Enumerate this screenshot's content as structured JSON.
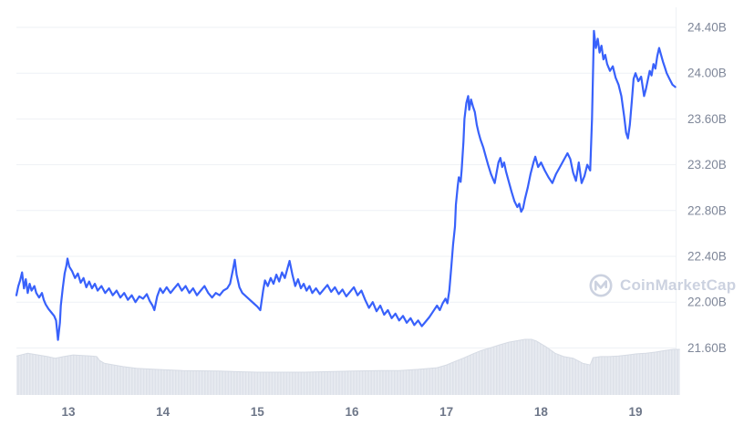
{
  "watermark": {
    "text": "CoinMarketCap"
  },
  "colors": {
    "line": "#3861fb",
    "grid": "#eef1f5",
    "axis_text": "#7f8799",
    "x_axis_text": "#6e7789",
    "nav_base": "#e8ebf1",
    "nav_stripe": "#dde1e9",
    "nav_edge": "#d6dbe4",
    "watermark": "#ccd2e0",
    "background": "#ffffff"
  },
  "chart_data": {
    "type": "line",
    "xlabel": "",
    "ylabel": "",
    "unit": "B",
    "grid": "horizontal",
    "legend": "none",
    "y_axis": {
      "position": "right",
      "tick_labels": [
        "24.40B",
        "24.00B",
        "23.60B",
        "23.20B",
        "22.80B",
        "22.40B",
        "22.00B",
        "21.60B"
      ],
      "tick_values": [
        24.4,
        24.0,
        23.6,
        23.2,
        22.8,
        22.4,
        22.0,
        21.6
      ]
    },
    "x_axis": {
      "position": "bottom",
      "tick_labels": [
        "13",
        "14",
        "15",
        "16",
        "17",
        "18",
        "19"
      ],
      "tick_values": [
        13,
        14,
        15,
        16,
        17,
        18,
        19
      ]
    },
    "x_range": [
      12.45,
      19.42
    ],
    "ylim": [
      21.6,
      24.4
    ],
    "series": [
      {
        "name": "market_cap_billions_usd",
        "color": "#3861fb",
        "points": [
          [
            12.45,
            22.06
          ],
          [
            12.47,
            22.14
          ],
          [
            12.49,
            22.19
          ],
          [
            12.51,
            22.26
          ],
          [
            12.53,
            22.12
          ],
          [
            12.55,
            22.2
          ],
          [
            12.57,
            22.08
          ],
          [
            12.59,
            22.16
          ],
          [
            12.61,
            22.1
          ],
          [
            12.64,
            22.14
          ],
          [
            12.66,
            22.08
          ],
          [
            12.69,
            22.04
          ],
          [
            12.72,
            22.08
          ],
          [
            12.74,
            22.02
          ],
          [
            12.76,
            21.98
          ],
          [
            12.79,
            21.94
          ],
          [
            12.82,
            21.91
          ],
          [
            12.85,
            21.88
          ],
          [
            12.87,
            21.84
          ],
          [
            12.89,
            21.67
          ],
          [
            12.91,
            21.82
          ],
          [
            12.92,
            21.97
          ],
          [
            12.94,
            22.12
          ],
          [
            12.96,
            22.25
          ],
          [
            12.98,
            22.32
          ],
          [
            12.99,
            22.38
          ],
          [
            13.01,
            22.31
          ],
          [
            13.04,
            22.27
          ],
          [
            13.07,
            22.21
          ],
          [
            13.1,
            22.25
          ],
          [
            13.13,
            22.17
          ],
          [
            13.16,
            22.21
          ],
          [
            13.19,
            22.13
          ],
          [
            13.22,
            22.18
          ],
          [
            13.25,
            22.12
          ],
          [
            13.28,
            22.16
          ],
          [
            13.31,
            22.1
          ],
          [
            13.35,
            22.14
          ],
          [
            13.39,
            22.08
          ],
          [
            13.43,
            22.12
          ],
          [
            13.47,
            22.06
          ],
          [
            13.51,
            22.1
          ],
          [
            13.55,
            22.04
          ],
          [
            13.59,
            22.08
          ],
          [
            13.63,
            22.02
          ],
          [
            13.67,
            22.06
          ],
          [
            13.71,
            22.0
          ],
          [
            13.75,
            22.05
          ],
          [
            13.79,
            22.03
          ],
          [
            13.83,
            22.07
          ],
          [
            13.86,
            22.01
          ],
          [
            13.89,
            21.97
          ],
          [
            13.91,
            21.93
          ],
          [
            13.94,
            22.05
          ],
          [
            13.97,
            22.12
          ],
          [
            14.0,
            22.08
          ],
          [
            14.04,
            22.13
          ],
          [
            14.08,
            22.08
          ],
          [
            14.12,
            22.12
          ],
          [
            14.16,
            22.16
          ],
          [
            14.2,
            22.1
          ],
          [
            14.24,
            22.14
          ],
          [
            14.28,
            22.08
          ],
          [
            14.32,
            22.12
          ],
          [
            14.36,
            22.06
          ],
          [
            14.4,
            22.1
          ],
          [
            14.44,
            22.14
          ],
          [
            14.48,
            22.08
          ],
          [
            14.52,
            22.04
          ],
          [
            14.56,
            22.08
          ],
          [
            14.6,
            22.06
          ],
          [
            14.64,
            22.1
          ],
          [
            14.68,
            22.12
          ],
          [
            14.71,
            22.16
          ],
          [
            14.74,
            22.28
          ],
          [
            14.76,
            22.37
          ],
          [
            14.78,
            22.24
          ],
          [
            14.81,
            22.13
          ],
          [
            14.84,
            22.08
          ],
          [
            14.88,
            22.05
          ],
          [
            14.92,
            22.02
          ],
          [
            14.96,
            21.99
          ],
          [
            15.0,
            21.96
          ],
          [
            15.03,
            21.93
          ],
          [
            15.06,
            22.1
          ],
          [
            15.08,
            22.19
          ],
          [
            15.11,
            22.14
          ],
          [
            15.14,
            22.21
          ],
          [
            15.17,
            22.16
          ],
          [
            15.2,
            22.24
          ],
          [
            15.23,
            22.18
          ],
          [
            15.26,
            22.26
          ],
          [
            15.29,
            22.21
          ],
          [
            15.32,
            22.3
          ],
          [
            15.34,
            22.36
          ],
          [
            15.37,
            22.24
          ],
          [
            15.4,
            22.14
          ],
          [
            15.43,
            22.2
          ],
          [
            15.46,
            22.12
          ],
          [
            15.49,
            22.16
          ],
          [
            15.52,
            22.1
          ],
          [
            15.55,
            22.14
          ],
          [
            15.58,
            22.08
          ],
          [
            15.62,
            22.12
          ],
          [
            15.66,
            22.07
          ],
          [
            15.7,
            22.11
          ],
          [
            15.74,
            22.15
          ],
          [
            15.78,
            22.09
          ],
          [
            15.82,
            22.13
          ],
          [
            15.86,
            22.07
          ],
          [
            15.9,
            22.11
          ],
          [
            15.94,
            22.05
          ],
          [
            15.98,
            22.09
          ],
          [
            16.02,
            22.13
          ],
          [
            16.06,
            22.06
          ],
          [
            16.1,
            22.1
          ],
          [
            16.14,
            22.02
          ],
          [
            16.18,
            21.95
          ],
          [
            16.22,
            22.0
          ],
          [
            16.26,
            21.92
          ],
          [
            16.3,
            21.97
          ],
          [
            16.34,
            21.89
          ],
          [
            16.38,
            21.93
          ],
          [
            16.42,
            21.86
          ],
          [
            16.46,
            21.9
          ],
          [
            16.5,
            21.84
          ],
          [
            16.54,
            21.88
          ],
          [
            16.58,
            21.82
          ],
          [
            16.62,
            21.86
          ],
          [
            16.66,
            21.8
          ],
          [
            16.7,
            21.84
          ],
          [
            16.74,
            21.79
          ],
          [
            16.78,
            21.83
          ],
          [
            16.82,
            21.87
          ],
          [
            16.86,
            21.92
          ],
          [
            16.9,
            21.97
          ],
          [
            16.93,
            21.93
          ],
          [
            16.96,
            21.99
          ],
          [
            16.99,
            22.03
          ],
          [
            17.01,
            21.99
          ],
          [
            17.03,
            22.1
          ],
          [
            17.05,
            22.3
          ],
          [
            17.07,
            22.5
          ],
          [
            17.09,
            22.66
          ],
          [
            17.1,
            22.85
          ],
          [
            17.12,
            23.02
          ],
          [
            17.13,
            23.09
          ],
          [
            17.15,
            23.05
          ],
          [
            17.16,
            23.15
          ],
          [
            17.18,
            23.4
          ],
          [
            17.19,
            23.6
          ],
          [
            17.21,
            23.74
          ],
          [
            17.23,
            23.8
          ],
          [
            17.24,
            23.68
          ],
          [
            17.26,
            23.77
          ],
          [
            17.28,
            23.71
          ],
          [
            17.3,
            23.66
          ],
          [
            17.32,
            23.55
          ],
          [
            17.34,
            23.48
          ],
          [
            17.36,
            23.42
          ],
          [
            17.39,
            23.35
          ],
          [
            17.42,
            23.26
          ],
          [
            17.44,
            23.2
          ],
          [
            17.47,
            23.12
          ],
          [
            17.49,
            23.08
          ],
          [
            17.51,
            23.04
          ],
          [
            17.53,
            23.13
          ],
          [
            17.55,
            23.22
          ],
          [
            17.57,
            23.26
          ],
          [
            17.59,
            23.18
          ],
          [
            17.61,
            23.22
          ],
          [
            17.63,
            23.14
          ],
          [
            17.66,
            23.05
          ],
          [
            17.69,
            22.96
          ],
          [
            17.72,
            22.88
          ],
          [
            17.75,
            22.83
          ],
          [
            17.77,
            22.86
          ],
          [
            17.79,
            22.79
          ],
          [
            17.81,
            22.82
          ],
          [
            17.83,
            22.9
          ],
          [
            17.86,
            23.0
          ],
          [
            17.89,
            23.12
          ],
          [
            17.92,
            23.22
          ],
          [
            17.94,
            23.27
          ],
          [
            17.97,
            23.18
          ],
          [
            18.0,
            23.22
          ],
          [
            18.04,
            23.15
          ],
          [
            18.08,
            23.09
          ],
          [
            18.12,
            23.04
          ],
          [
            18.16,
            23.12
          ],
          [
            18.2,
            23.18
          ],
          [
            18.24,
            23.24
          ],
          [
            18.28,
            23.3
          ],
          [
            18.31,
            23.25
          ],
          [
            18.34,
            23.13
          ],
          [
            18.37,
            23.06
          ],
          [
            18.4,
            23.22
          ],
          [
            18.43,
            23.04
          ],
          [
            18.46,
            23.1
          ],
          [
            18.49,
            23.2
          ],
          [
            18.52,
            23.15
          ],
          [
            18.54,
            23.6
          ],
          [
            18.55,
            24.0
          ],
          [
            18.56,
            24.37
          ],
          [
            18.58,
            24.22
          ],
          [
            18.6,
            24.3
          ],
          [
            18.62,
            24.18
          ],
          [
            18.64,
            24.24
          ],
          [
            18.66,
            24.12
          ],
          [
            18.68,
            24.16
          ],
          [
            18.7,
            24.08
          ],
          [
            18.73,
            24.02
          ],
          [
            18.76,
            24.06
          ],
          [
            18.79,
            23.96
          ],
          [
            18.82,
            23.9
          ],
          [
            18.85,
            23.8
          ],
          [
            18.88,
            23.62
          ],
          [
            18.9,
            23.48
          ],
          [
            18.92,
            23.43
          ],
          [
            18.94,
            23.55
          ],
          [
            18.96,
            23.75
          ],
          [
            18.98,
            23.95
          ],
          [
            19.0,
            24.0
          ],
          [
            19.03,
            23.93
          ],
          [
            19.06,
            23.97
          ],
          [
            19.09,
            23.8
          ],
          [
            19.11,
            23.86
          ],
          [
            19.13,
            23.94
          ],
          [
            19.15,
            24.02
          ],
          [
            19.17,
            23.98
          ],
          [
            19.19,
            24.08
          ],
          [
            19.21,
            24.04
          ],
          [
            19.23,
            24.15
          ],
          [
            19.25,
            24.22
          ],
          [
            19.27,
            24.16
          ],
          [
            19.29,
            24.1
          ],
          [
            19.31,
            24.05
          ],
          [
            19.33,
            24.0
          ],
          [
            19.36,
            23.95
          ],
          [
            19.39,
            23.9
          ],
          [
            19.42,
            23.88
          ]
        ]
      }
    ],
    "navigator": {
      "points": [
        [
          12.45,
          0.7
        ],
        [
          12.57,
          0.75
        ],
        [
          12.68,
          0.72
        ],
        [
          12.78,
          0.69
        ],
        [
          12.86,
          0.66
        ],
        [
          12.95,
          0.69
        ],
        [
          13.05,
          0.72
        ],
        [
          13.15,
          0.71
        ],
        [
          13.24,
          0.7
        ],
        [
          13.3,
          0.69
        ],
        [
          13.33,
          0.62
        ],
        [
          13.38,
          0.57
        ],
        [
          13.48,
          0.54
        ],
        [
          13.58,
          0.51
        ],
        [
          13.72,
          0.48
        ],
        [
          13.92,
          0.46
        ],
        [
          14.21,
          0.44
        ],
        [
          14.59,
          0.43
        ],
        [
          15.0,
          0.41
        ],
        [
          15.5,
          0.41
        ],
        [
          16.0,
          0.43
        ],
        [
          16.3,
          0.44
        ],
        [
          16.5,
          0.44
        ],
        [
          16.7,
          0.46
        ],
        [
          16.9,
          0.49
        ],
        [
          17.0,
          0.54
        ],
        [
          17.1,
          0.61
        ],
        [
          17.19,
          0.67
        ],
        [
          17.28,
          0.74
        ],
        [
          17.37,
          0.8
        ],
        [
          17.47,
          0.85
        ],
        [
          17.56,
          0.9
        ],
        [
          17.66,
          0.95
        ],
        [
          17.76,
          0.98
        ],
        [
          17.83,
          1.0
        ],
        [
          17.9,
          1.0
        ],
        [
          17.95,
          0.97
        ],
        [
          18.05,
          0.87
        ],
        [
          18.15,
          0.75
        ],
        [
          18.24,
          0.69
        ],
        [
          18.34,
          0.66
        ],
        [
          18.44,
          0.57
        ],
        [
          18.52,
          0.54
        ],
        [
          18.55,
          0.67
        ],
        [
          18.63,
          0.69
        ],
        [
          18.72,
          0.69
        ],
        [
          18.82,
          0.7
        ],
        [
          18.92,
          0.72
        ],
        [
          19.01,
          0.74
        ],
        [
          19.11,
          0.75
        ],
        [
          19.21,
          0.77
        ],
        [
          19.31,
          0.8
        ],
        [
          19.4,
          0.82
        ],
        [
          19.47,
          0.82
        ]
      ]
    }
  }
}
